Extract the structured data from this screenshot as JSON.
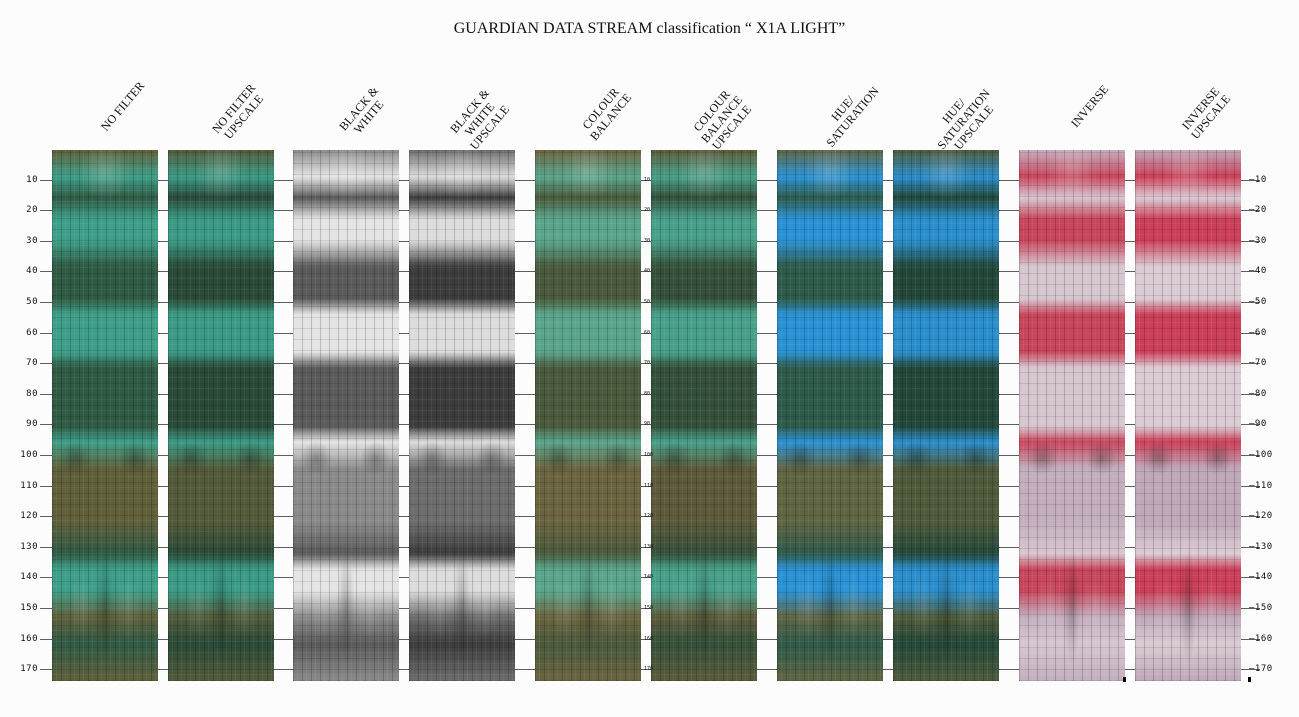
{
  "title": "GUARDIAN DATA STREAM classification “ X1A LIGHT”",
  "columns": [
    {
      "label": "NO FILTER",
      "palette": [
        "#3e9e88",
        "#2f5a44",
        "#5f5f3a"
      ]
    },
    {
      "label": "NO FILTER\nUPSCALE",
      "palette": [
        "#3a9a84",
        "#2a4a38",
        "#525a3a"
      ]
    },
    {
      "label": "BLACK &\nWHITE",
      "palette": [
        "#e4e4e4",
        "#5a5a5a",
        "#8a8a8a"
      ]
    },
    {
      "label": "BLACK &\nWHITE\nUPSCALE",
      "palette": [
        "#dcdcdc",
        "#3c3c3c",
        "#6c6c6c"
      ]
    },
    {
      "label": "COLOUR\nBALANCE",
      "palette": [
        "#5aa58c",
        "#4a5a3c",
        "#6a6440"
      ]
    },
    {
      "label": "COLOUR\nBALANCE\nUPSCALE",
      "palette": [
        "#48a08a",
        "#34503a",
        "#5c5a3a"
      ]
    },
    {
      "label": "HUE/\nSATURATION",
      "palette": [
        "#2a92d4",
        "#2e5a4a",
        "#5f6442"
      ]
    },
    {
      "label": "HUE/\nSATURATION\nUPSCALE",
      "palette": [
        "#2a8ecc",
        "#23483a",
        "#4f5a3a"
      ]
    },
    {
      "label": "INVERSE",
      "palette": [
        "#c8465c",
        "#d6c6d0",
        "#c3aebd"
      ]
    },
    {
      "label": "INVERSE\nUPSCALE",
      "palette": [
        "#cc3f58",
        "#dacbd4",
        "#bfa8b8"
      ]
    }
  ],
  "scale": {
    "ticks": [
      "10",
      "20",
      "30",
      "40",
      "50",
      "60",
      "70",
      "80",
      "90",
      "100",
      "110",
      "120",
      "130",
      "140",
      "150",
      "160",
      "170"
    ],
    "max": 173
  }
}
